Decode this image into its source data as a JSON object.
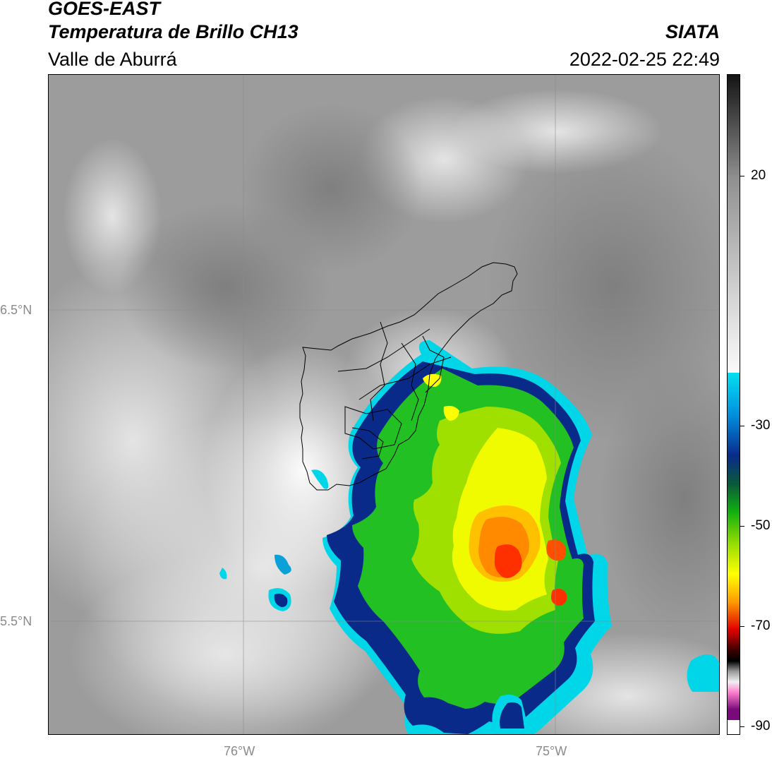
{
  "header": {
    "satellite": "GOES-EAST",
    "product": "Temperatura de Brillo CH13",
    "organization": "SIATA",
    "region": "Valle de Aburrá",
    "datetime": "2022-02-25 22:49"
  },
  "map": {
    "lat_labels": [
      "6.5°N",
      "5.5°N"
    ],
    "lon_labels": [
      "76°W",
      "75°W"
    ],
    "gridline_color": "#8a8a8a",
    "boundary_name": "Valle de Aburrá municipalities"
  },
  "colorbar": {
    "tick_labels": [
      "20",
      "-30",
      "-50",
      "-70",
      "-90"
    ],
    "colors": {
      "warm_top": "#141414",
      "gray_mid": "#9a9a9a",
      "light": "#f2f2f2",
      "cyan": "#00d6e8",
      "blue": "#0a2a8a",
      "green": "#22c022",
      "yellow": "#ffff00",
      "orange": "#ff8a00",
      "red": "#e00000",
      "dark_red": "#3a0000",
      "pink": "#ff7fd0",
      "purple": "#7a0a7a"
    }
  }
}
